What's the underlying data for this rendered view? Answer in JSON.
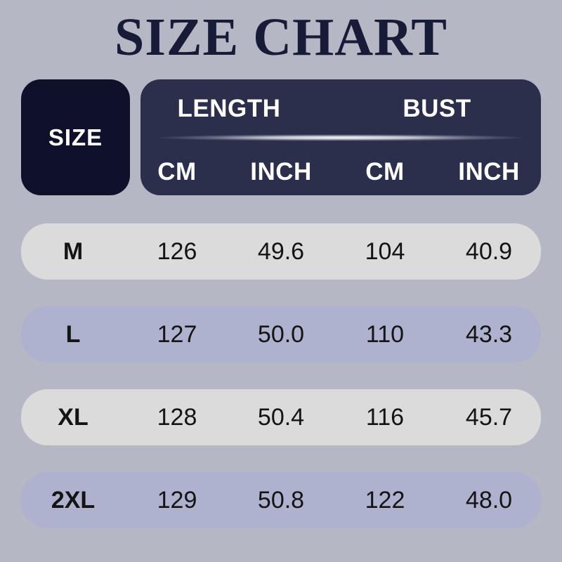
{
  "page": {
    "title": "SIZE CHART"
  },
  "colors": {
    "background": "#b5b7c4",
    "title_text": "#171b38",
    "size_box_bg": "#0e1129",
    "header_box_bg": "#2b2f4b",
    "header_text": "#ffffff",
    "row_gray_bg": "#dbdbdc",
    "row_lavender_bg": "#aeb2ce",
    "row_text": "#141414"
  },
  "table": {
    "size_header": "SIZE",
    "groups": [
      {
        "label": "LENGTH"
      },
      {
        "label": "BUST"
      }
    ],
    "subheaders": [
      "CM",
      "INCH",
      "CM",
      "INCH"
    ],
    "rows": [
      {
        "size": "M",
        "values": [
          "126",
          "49.6",
          "104",
          "40.9"
        ]
      },
      {
        "size": "L",
        "values": [
          "127",
          "50.0",
          "110",
          "43.3"
        ]
      },
      {
        "size": "XL",
        "values": [
          "128",
          "50.4",
          "116",
          "45.7"
        ]
      },
      {
        "size": "2XL",
        "values": [
          "129",
          "50.8",
          "122",
          "48.0"
        ]
      }
    ]
  },
  "chart_data": {
    "type": "table",
    "title": "SIZE CHART",
    "row_header": "SIZE",
    "column_groups": [
      {
        "label": "LENGTH",
        "columns": [
          "CM",
          "INCH"
        ]
      },
      {
        "label": "BUST",
        "columns": [
          "CM",
          "INCH"
        ]
      }
    ],
    "rows": [
      {
        "size": "M",
        "length_cm": 126,
        "length_inch": 49.6,
        "bust_cm": 104,
        "bust_inch": 40.9
      },
      {
        "size": "L",
        "length_cm": 127,
        "length_inch": 50.0,
        "bust_cm": 110,
        "bust_inch": 43.3
      },
      {
        "size": "XL",
        "length_cm": 128,
        "length_inch": 50.4,
        "bust_cm": 116,
        "bust_inch": 45.7
      },
      {
        "size": "2XL",
        "length_cm": 129,
        "length_inch": 50.8,
        "bust_cm": 122,
        "bust_inch": 48.0
      }
    ]
  }
}
